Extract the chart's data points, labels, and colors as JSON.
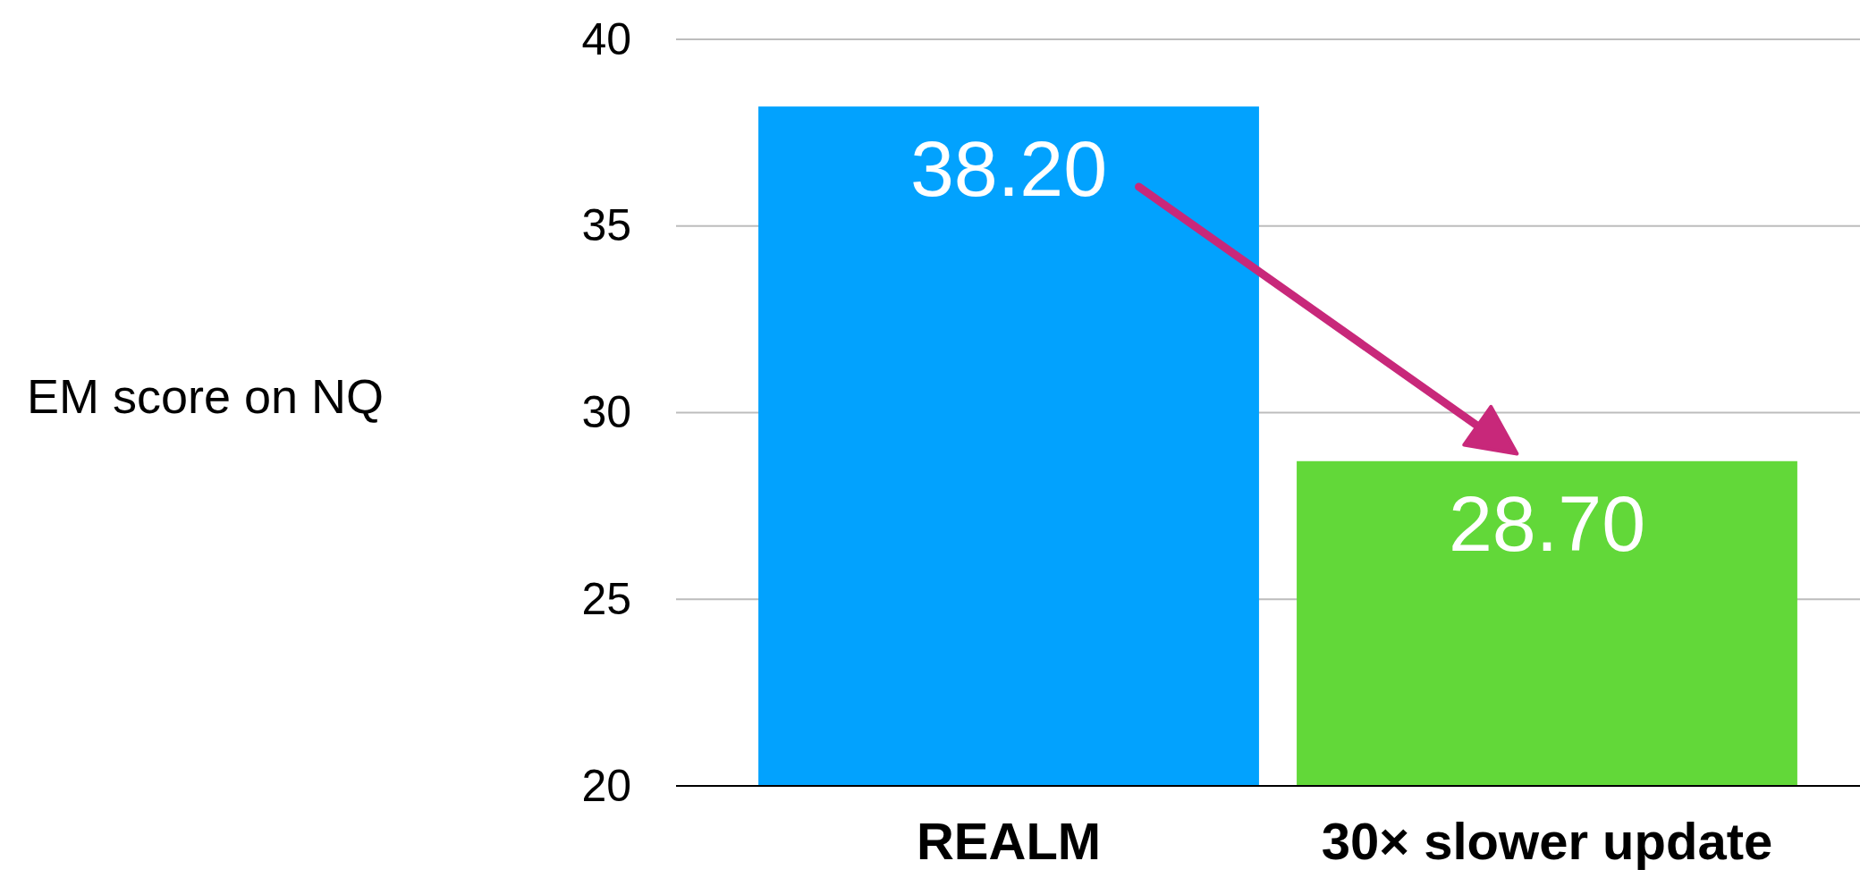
{
  "chart_data": {
    "type": "bar",
    "ylabel": "EM score on NQ",
    "categories": [
      "REALM",
      "30× slower update"
    ],
    "values": [
      38.2,
      28.7
    ],
    "colors": [
      "#02a2fe",
      "#62d839"
    ],
    "value_labels": [
      "38.20",
      "28.70"
    ],
    "ylim": [
      20,
      40
    ],
    "yticks": [
      20,
      25,
      30,
      35,
      40
    ],
    "grid": "y"
  }
}
